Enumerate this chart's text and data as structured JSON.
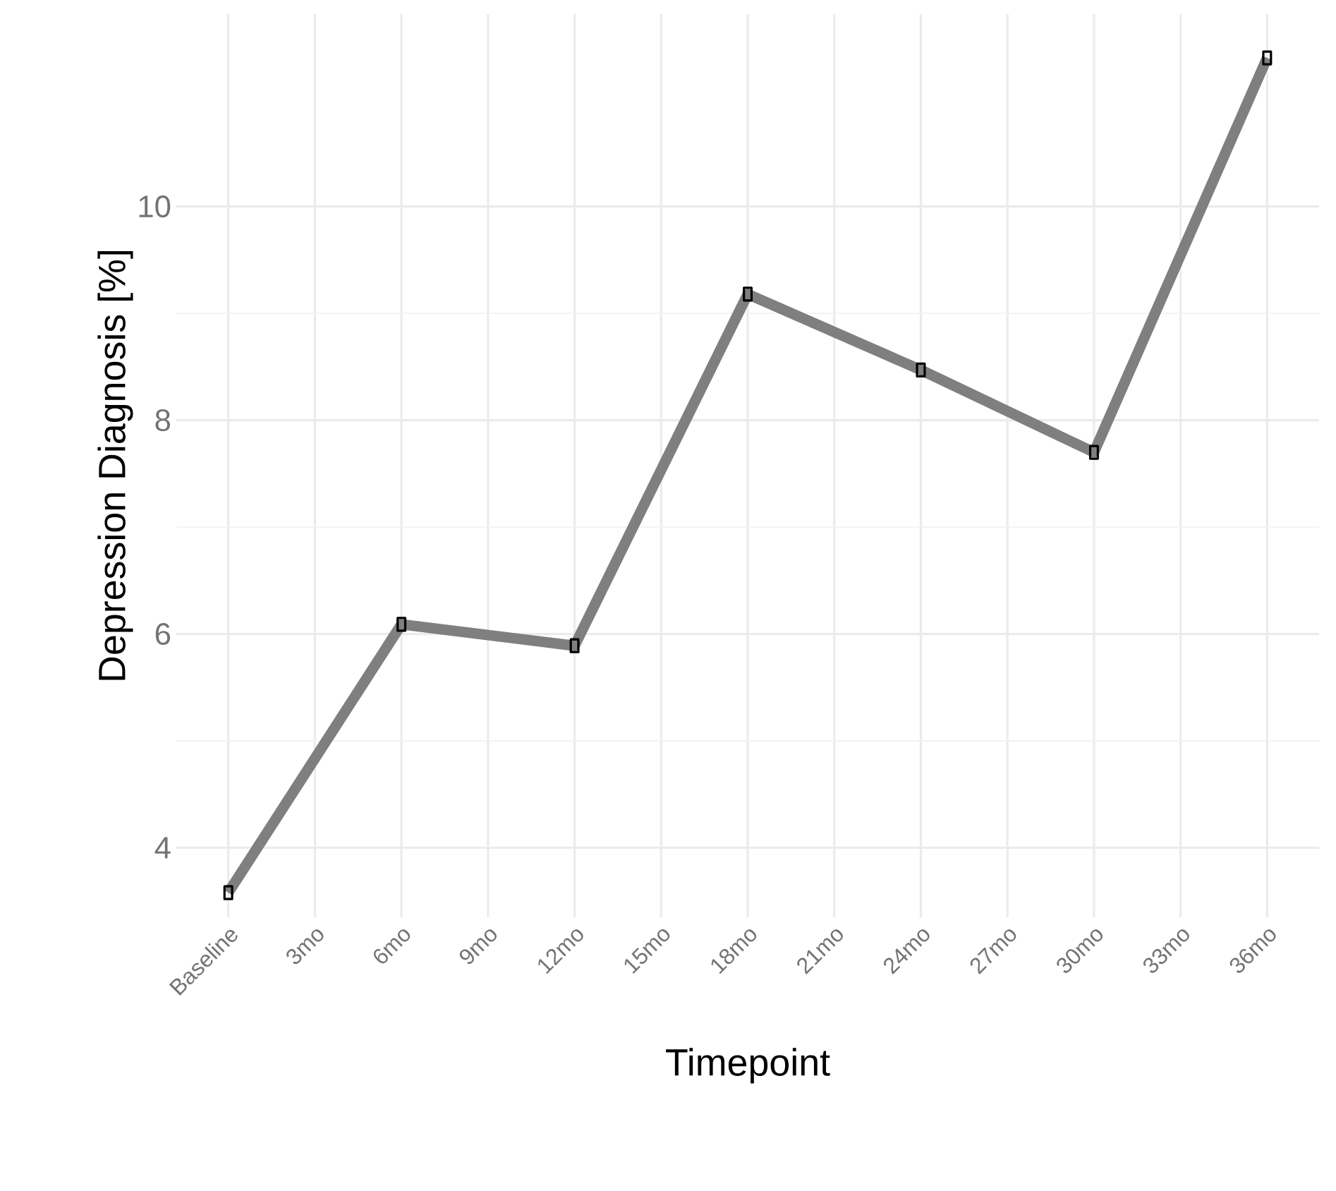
{
  "chart_data": {
    "type": "line",
    "xlabel": "Timepoint",
    "ylabel": "Depression Diagnosis [%]",
    "categories": [
      "Baseline",
      "3mo",
      "6mo",
      "9mo",
      "12mo",
      "15mo",
      "18mo",
      "21mo",
      "24mo",
      "27mo",
      "30mo",
      "33mo",
      "36mo"
    ],
    "values": [
      3.58,
      null,
      6.09,
      null,
      5.89,
      null,
      9.18,
      null,
      8.47,
      null,
      7.7,
      null,
      11.39
    ],
    "color": "#7f7f7f",
    "marker": "square",
    "line_style": "solid",
    "grid": true,
    "ylim": [
      3.35,
      11.8
    ],
    "yticks": [
      4,
      6,
      8,
      10
    ]
  }
}
